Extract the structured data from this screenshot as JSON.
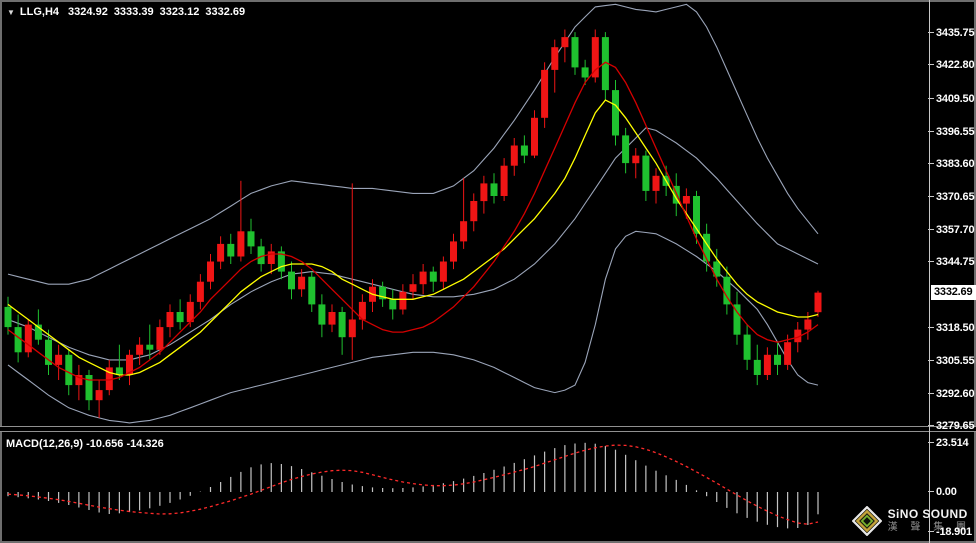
{
  "window": {
    "title": "LLG H4 chart with MACD",
    "background": "#000000"
  },
  "header": {
    "dropdown_icon": "▼",
    "symbol_period": "LLG,H4",
    "open": "3324.92",
    "high": "3333.39",
    "low": "3323.12",
    "close": "3332.69"
  },
  "price_axis": {
    "current_price": "3332.69",
    "tick_labels": [
      "3435.75",
      "3422.80",
      "3409.50",
      "3396.55",
      "3383.60",
      "3370.65",
      "3357.70",
      "3344.75",
      "3318.50",
      "3305.55",
      "3292.60",
      "3279.65"
    ]
  },
  "macd_panel": {
    "label": "MACD(12,26,9) -10.656 -14.326",
    "ticks": [
      {
        "label": "23.514",
        "value": 23.514
      },
      {
        "label": "0.00",
        "value": 0
      },
      {
        "label": "-18.901",
        "value": -18.901
      }
    ]
  },
  "logo": {
    "brand": "SiNO SOUND",
    "brand_cn": "漢 聲 集 團"
  },
  "colors": {
    "bull": "#f01515",
    "bear": "#1fc12f",
    "band": "#9aa4b8",
    "ma_yellow": "#ffff00",
    "ma_red": "#d40000",
    "macd_bar": "#c4c4c4",
    "macd_signal": "#ff2a2a",
    "axis_text": "#ffffff",
    "tag_bg": "#ffffff"
  },
  "chart_data": {
    "type": "candlestick",
    "symbol": "LLG",
    "timeframe": "H4",
    "color_convention": "red = bullish, green = bearish",
    "title": "LLG,H4 3324.92 3333.39 3323.12 3332.69",
    "ylim": [
      3279.65,
      3435.75
    ],
    "price_ticks": [
      3435.75,
      3422.8,
      3409.5,
      3396.55,
      3383.6,
      3370.65,
      3357.7,
      3344.75,
      3318.5,
      3305.55,
      3292.6,
      3279.65
    ],
    "current_price": 3332.69,
    "last_candle_ohlc": [
      3324.92,
      3333.39,
      3323.12,
      3332.69
    ],
    "candles_ohlc": [
      [
        3327,
        3331,
        3316,
        3319
      ],
      [
        3319,
        3324,
        3305,
        3309
      ],
      [
        3309,
        3322,
        3307,
        3320
      ],
      [
        3320,
        3326,
        3312,
        3314
      ],
      [
        3314,
        3318,
        3300,
        3304
      ],
      [
        3304,
        3312,
        3298,
        3308
      ],
      [
        3308,
        3310,
        3292,
        3296
      ],
      [
        3296,
        3304,
        3290,
        3300
      ],
      [
        3300,
        3302,
        3286,
        3290
      ],
      [
        3290,
        3298,
        3283,
        3294
      ],
      [
        3294,
        3306,
        3292,
        3303
      ],
      [
        3303,
        3312,
        3298,
        3300
      ],
      [
        3300,
        3310,
        3296,
        3308
      ],
      [
        3308,
        3315,
        3304,
        3312
      ],
      [
        3312,
        3320,
        3306,
        3310
      ],
      [
        3310,
        3322,
        3308,
        3319
      ],
      [
        3319,
        3328,
        3315,
        3325
      ],
      [
        3325,
        3330,
        3318,
        3321
      ],
      [
        3321,
        3332,
        3319,
        3329
      ],
      [
        3329,
        3340,
        3326,
        3337
      ],
      [
        3337,
        3348,
        3334,
        3345
      ],
      [
        3345,
        3355,
        3342,
        3352
      ],
      [
        3352,
        3356,
        3344,
        3347
      ],
      [
        3347,
        3377,
        3345,
        3357
      ],
      [
        3357,
        3362,
        3348,
        3351
      ],
      [
        3351,
        3354,
        3341,
        3344
      ],
      [
        3344,
        3352,
        3340,
        3349
      ],
      [
        3349,
        3351,
        3338,
        3341
      ],
      [
        3341,
        3345,
        3330,
        3334
      ],
      [
        3334,
        3342,
        3331,
        3339
      ],
      [
        3339,
        3341,
        3325,
        3328
      ],
      [
        3328,
        3332,
        3315,
        3320
      ],
      [
        3320,
        3328,
        3317,
        3325
      ],
      [
        3325,
        3327,
        3308,
        3315
      ],
      [
        3315,
        3376,
        3306,
        3322
      ],
      [
        3322,
        3332,
        3318,
        3329
      ],
      [
        3329,
        3338,
        3325,
        3335
      ],
      [
        3335,
        3337,
        3327,
        3330
      ],
      [
        3330,
        3334,
        3322,
        3326
      ],
      [
        3326,
        3336,
        3324,
        3333
      ],
      [
        3333,
        3340,
        3330,
        3336
      ],
      [
        3336,
        3344,
        3332,
        3341
      ],
      [
        3341,
        3343,
        3333,
        3337
      ],
      [
        3337,
        3347,
        3334,
        3345
      ],
      [
        3345,
        3356,
        3342,
        3353
      ],
      [
        3353,
        3378,
        3350,
        3361
      ],
      [
        3361,
        3372,
        3357,
        3369
      ],
      [
        3369,
        3379,
        3364,
        3376
      ],
      [
        3376,
        3380,
        3368,
        3371
      ],
      [
        3371,
        3386,
        3369,
        3383
      ],
      [
        3383,
        3394,
        3379,
        3391
      ],
      [
        3391,
        3395,
        3384,
        3387
      ],
      [
        3387,
        3405,
        3386,
        3402
      ],
      [
        3402,
        3424,
        3398,
        3421
      ],
      [
        3421,
        3433,
        3412,
        3430
      ],
      [
        3430,
        3437,
        3424,
        3434
      ],
      [
        3434,
        3436,
        3419,
        3422
      ],
      [
        3422,
        3425,
        3415,
        3418
      ],
      [
        3418,
        3437,
        3416,
        3434
      ],
      [
        3434,
        3436,
        3409,
        3413
      ],
      [
        3413,
        3417,
        3391,
        3395
      ],
      [
        3395,
        3398,
        3380,
        3384
      ],
      [
        3384,
        3390,
        3378,
        3387
      ],
      [
        3387,
        3389,
        3369,
        3373
      ],
      [
        3373,
        3382,
        3368,
        3379
      ],
      [
        3379,
        3383,
        3371,
        3375
      ],
      [
        3375,
        3380,
        3363,
        3368
      ],
      [
        3368,
        3374,
        3362,
        3371
      ],
      [
        3371,
        3373,
        3352,
        3356
      ],
      [
        3356,
        3360,
        3341,
        3345
      ],
      [
        3345,
        3350,
        3335,
        3339
      ],
      [
        3339,
        3343,
        3324,
        3328
      ],
      [
        3328,
        3333,
        3312,
        3316
      ],
      [
        3316,
        3320,
        3302,
        3306
      ],
      [
        3306,
        3312,
        3296,
        3300
      ],
      [
        3300,
        3311,
        3298,
        3308
      ],
      [
        3308,
        3313,
        3300,
        3304
      ],
      [
        3304,
        3316,
        3302,
        3313
      ],
      [
        3313,
        3321,
        3309,
        3318
      ],
      [
        3318,
        3325,
        3314,
        3322
      ],
      [
        3324.92,
        3333.39,
        3323.12,
        3332.69
      ]
    ],
    "overlays": {
      "band_upper": [
        3340,
        3339,
        3338,
        3337,
        3336,
        3336,
        3336,
        3337,
        3338,
        3340,
        3342,
        3344,
        3346,
        3348,
        3350,
        3352,
        3354,
        3356,
        3358,
        3360,
        3362,
        3364.5,
        3367,
        3369.5,
        3372,
        3373.5,
        3375,
        3376,
        3377,
        3376.5,
        3376,
        3375.5,
        3375,
        3374.5,
        3374,
        3374,
        3374,
        3373.5,
        3373,
        3372.5,
        3372,
        3372,
        3372,
        3373.5,
        3375,
        3378,
        3381,
        3385.5,
        3390,
        3395.5,
        3401,
        3407,
        3413,
        3419.5,
        3426,
        3432,
        3438,
        3442,
        3446,
        3446.5,
        3447,
        3446,
        3445,
        3444.5,
        3444,
        3445,
        3446,
        3447,
        3444,
        3438,
        3430,
        3421,
        3412,
        3403,
        3394,
        3386,
        3379,
        3372,
        3366,
        3361,
        3356
      ],
      "band_middle": [
        3322,
        3320.5,
        3319,
        3317,
        3315,
        3313,
        3311,
        3309.5,
        3308,
        3307,
        3306,
        3306,
        3306,
        3307,
        3308,
        3310,
        3312,
        3314.5,
        3317,
        3319.5,
        3322,
        3325,
        3328,
        3330.5,
        3333,
        3335,
        3337,
        3338.5,
        3340,
        3340.5,
        3341,
        3340.5,
        3340,
        3339,
        3338,
        3337,
        3336,
        3335,
        3334,
        3333,
        3332,
        3331.5,
        3331,
        3331,
        3331,
        3331.5,
        3332,
        3333,
        3334,
        3336,
        3338,
        3341,
        3344,
        3348,
        3352,
        3357,
        3362,
        3368,
        3374,
        3380,
        3386,
        3390,
        3394,
        3398,
        3397,
        3394.5,
        3392,
        3389,
        3386,
        3382,
        3378,
        3373.5,
        3369,
        3364.5,
        3360,
        3356,
        3352,
        3350,
        3348,
        3346,
        3344
      ],
      "band_lower": [
        3304,
        3301,
        3298,
        3295,
        3292,
        3289.5,
        3287,
        3285.5,
        3284,
        3283,
        3282,
        3281.5,
        3281,
        3281.5,
        3282,
        3283,
        3284,
        3285.5,
        3287,
        3288.5,
        3290,
        3291.5,
        3293,
        3294,
        3295,
        3296,
        3297,
        3298,
        3299,
        3300,
        3301,
        3302,
        3303,
        3304,
        3305,
        3306,
        3307,
        3307.5,
        3308,
        3308.5,
        3309,
        3309,
        3309,
        3308.5,
        3308,
        3307,
        3306,
        3304.5,
        3303,
        3301,
        3299,
        3297,
        3295,
        3294,
        3293,
        3294,
        3296,
        3305,
        3320,
        3338,
        3350,
        3355,
        3357,
        3356.5,
        3356,
        3354,
        3352,
        3349.5,
        3347,
        3344,
        3341,
        3337.5,
        3334,
        3330,
        3326,
        3320,
        3313,
        3306,
        3300,
        3297,
        3296
      ],
      "ma_yellow": [
        3328,
        3325,
        3322,
        3319,
        3316,
        3313,
        3310,
        3307,
        3305,
        3303,
        3301,
        3300,
        3300,
        3301,
        3303,
        3305,
        3308,
        3311,
        3314,
        3317,
        3321,
        3325,
        3329,
        3333,
        3336,
        3339,
        3341,
        3343,
        3344,
        3344,
        3344,
        3343,
        3341,
        3338,
        3336,
        3334,
        3332,
        3331,
        3330,
        3330,
        3330,
        3331,
        3332,
        3334,
        3336,
        3338,
        3341,
        3344,
        3347,
        3350,
        3354,
        3358,
        3362,
        3367,
        3372,
        3378,
        3386,
        3395,
        3404,
        3409,
        3407,
        3402,
        3396,
        3390,
        3384,
        3377,
        3370,
        3364,
        3358,
        3352,
        3346,
        3341,
        3336,
        3332,
        3329,
        3327,
        3325,
        3324,
        3323,
        3323,
        3324
      ],
      "ma_red": [
        3318,
        3315,
        3312,
        3309,
        3306,
        3303,
        3301,
        3299,
        3298,
        3298,
        3298,
        3299,
        3301,
        3303,
        3306,
        3309,
        3313,
        3317,
        3321,
        3325,
        3330,
        3334,
        3338,
        3342,
        3345,
        3347,
        3348,
        3348,
        3347,
        3345,
        3342,
        3338,
        3334,
        3330,
        3326,
        3322,
        3320,
        3318,
        3317,
        3317,
        3318,
        3319,
        3321,
        3324,
        3327,
        3331,
        3335,
        3340,
        3345,
        3351,
        3357,
        3364,
        3372,
        3381,
        3390,
        3399,
        3408,
        3416,
        3421,
        3424,
        3422,
        3416,
        3408,
        3399,
        3390,
        3381,
        3372,
        3363,
        3354,
        3346,
        3338,
        3331,
        3325,
        3320,
        3316,
        3314,
        3313,
        3314,
        3315,
        3317,
        3320
      ]
    },
    "macd": {
      "params": "12,26,9",
      "main_value": -10.656,
      "signal_value": -14.326,
      "ylim": [
        -18.901,
        23.514
      ],
      "histogram": [
        -2.0,
        -2.5,
        -3.0,
        -3.6,
        -4.3,
        -5.2,
        -6.2,
        -7.4,
        -8.6,
        -9.8,
        -10.5,
        -10.2,
        -9.6,
        -8.8,
        -7.8,
        -6.6,
        -5.2,
        -3.6,
        -1.8,
        0.2,
        2.4,
        4.8,
        7.2,
        9.6,
        11.8,
        13.2,
        13.8,
        13.4,
        12.4,
        11.0,
        9.4,
        7.8,
        6.2,
        4.8,
        3.6,
        2.8,
        2.2,
        1.9,
        1.8,
        1.9,
        2.2,
        2.7,
        3.4,
        4.2,
        5.2,
        6.4,
        7.7,
        9.1,
        10.6,
        12.2,
        13.9,
        15.7,
        17.5,
        19.3,
        21.0,
        22.4,
        23.2,
        23.514,
        23.1,
        22.0,
        20.2,
        17.8,
        15.2,
        12.6,
        10.2,
        8.0,
        5.8,
        3.4,
        0.8,
        -2.0,
        -4.8,
        -7.6,
        -10.2,
        -12.4,
        -14.2,
        -15.7,
        -16.8,
        -17.4,
        -17.2,
        -15.8,
        -10.656
      ],
      "signal": [
        -1.0,
        -1.4,
        -1.8,
        -2.4,
        -3.0,
        -3.7,
        -4.5,
        -5.4,
        -6.3,
        -7.2,
        -8.0,
        -8.7,
        -9.3,
        -9.8,
        -10.2,
        -10.5,
        -10.4,
        -10.0,
        -9.2,
        -8.2,
        -7.0,
        -5.6,
        -4.2,
        -2.6,
        -1.0,
        0.8,
        2.6,
        4.4,
        6.0,
        7.4,
        8.6,
        9.5,
        10.2,
        10.4,
        10.2,
        9.4,
        8.2,
        7.0,
        5.8,
        4.8,
        4.0,
        3.4,
        3.0,
        3.0,
        3.3,
        3.9,
        4.8,
        5.9,
        7.0,
        8.2,
        9.5,
        10.8,
        12.2,
        13.8,
        15.4,
        17.0,
        18.6,
        20.0,
        21.2,
        22.0,
        22.4,
        22.3,
        21.6,
        20.4,
        18.8,
        16.8,
        14.6,
        12.2,
        9.6,
        7.0,
        4.2,
        1.4,
        -1.4,
        -4.2,
        -6.8,
        -9.2,
        -11.4,
        -13.2,
        -14.8,
        -15.4,
        -14.326
      ]
    },
    "layout": {
      "grid": false,
      "legend": "none",
      "panels": [
        "price",
        "macd"
      ],
      "right_margin_bars": 11
    }
  }
}
